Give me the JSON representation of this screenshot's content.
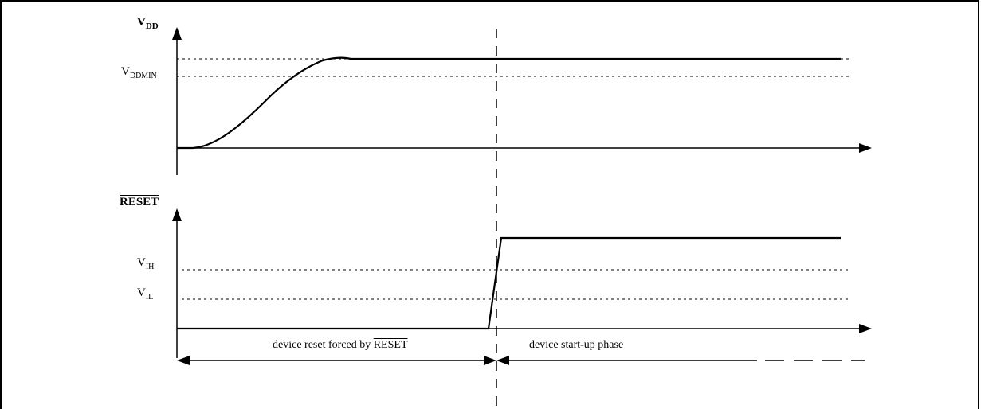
{
  "signals": {
    "vdd": {
      "main": "V",
      "sub": "DD"
    },
    "reset": {
      "text": "RESET"
    }
  },
  "levels": {
    "vddmin": {
      "main": "V",
      "sub": "DDMIN"
    },
    "vih": {
      "main": "V",
      "sub": "IH"
    },
    "vil": {
      "main": "V",
      "sub": "IL"
    }
  },
  "phases": {
    "reset_phase": {
      "prefix": "device reset forced by ",
      "signal": "RESET"
    },
    "startup_phase": {
      "text": "device start-up phase"
    }
  }
}
